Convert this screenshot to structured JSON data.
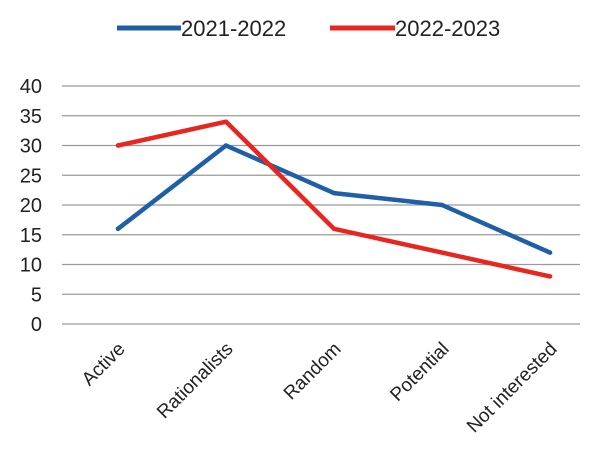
{
  "chart_data": {
    "type": "line",
    "title": "",
    "xlabel": "",
    "ylabel": "",
    "categories": [
      "Active",
      "Rationalists",
      "Random",
      "Potential",
      "Not interested"
    ],
    "ylim": [
      0,
      40
    ],
    "yticks": [
      0,
      5,
      10,
      15,
      20,
      25,
      30,
      35,
      40
    ],
    "grid": true,
    "legend": "top",
    "series": [
      {
        "name": "2021-2022",
        "color": "#1f5fa8",
        "values": [
          16,
          30,
          22,
          20,
          12
        ]
      },
      {
        "name": "2022-2023",
        "color": "#e8261f",
        "values": [
          30,
          34,
          16,
          12,
          8
        ]
      }
    ]
  }
}
